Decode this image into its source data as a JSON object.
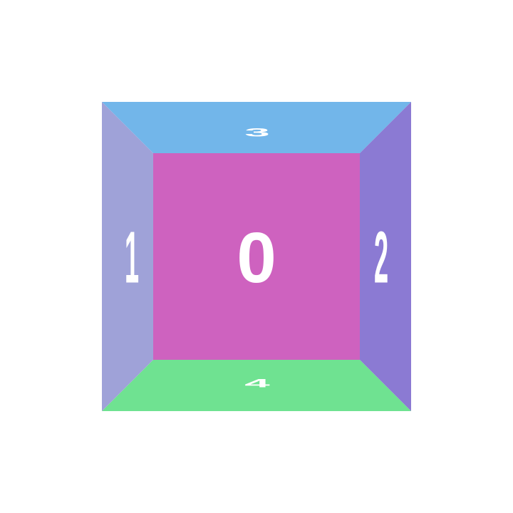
{
  "faces": {
    "front": {
      "label": "0",
      "color": "#CE62BF"
    },
    "left": {
      "label": "1",
      "color": "#9FA2D8"
    },
    "right": {
      "label": "2",
      "color": "#8B7AD3"
    },
    "top": {
      "label": "3",
      "color": "#72B6EA"
    },
    "bottom": {
      "label": "4",
      "color": "#6FE291"
    }
  }
}
